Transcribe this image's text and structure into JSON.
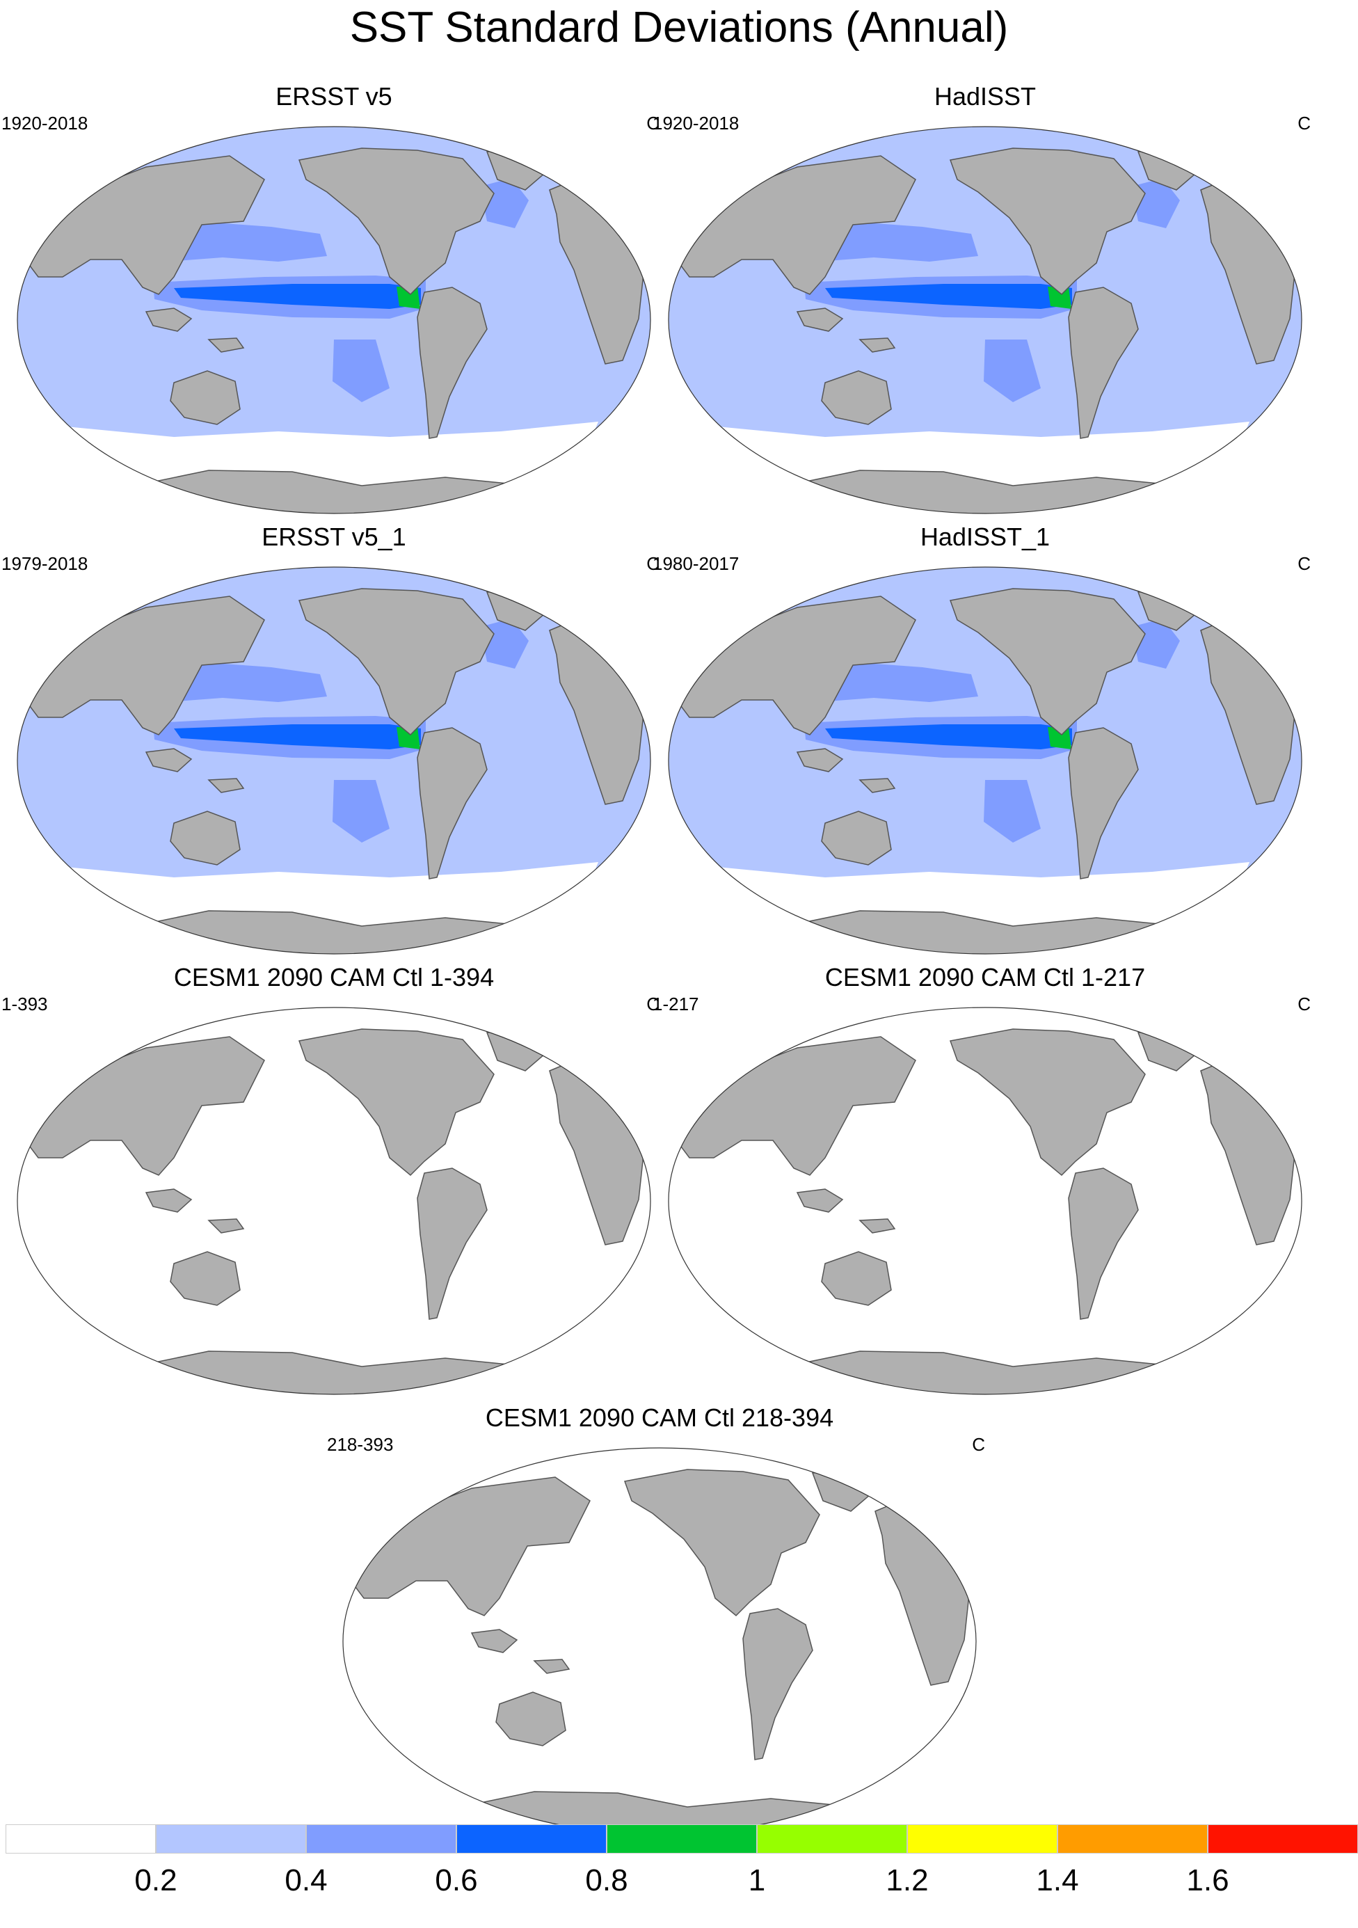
{
  "figure": {
    "title": "SST Standard Deviations (Annual)"
  },
  "colors": {
    "land": "#b0b0b0",
    "land_stroke": "#555555",
    "levels": [
      "#ffffff",
      "#b3c6ff",
      "#809dff",
      "#0c64ff",
      "#00c431",
      "#96ff00",
      "#ffff00",
      "#ff9c00",
      "#ff1300"
    ]
  },
  "panels": [
    {
      "title": "ERSST v5",
      "years": "1920-2018",
      "units": "C",
      "pattern": "observed"
    },
    {
      "title": "HadISST",
      "years": "1920-2018",
      "units": "C",
      "pattern": "observed"
    },
    {
      "title": "ERSST v5_1",
      "years": "1979-2018",
      "units": "C",
      "pattern": "observed"
    },
    {
      "title": "HadISST_1",
      "years": "1980-2017",
      "units": "C",
      "pattern": "observed"
    },
    {
      "title": "CESM1 2090 CAM Ctl 1-394",
      "years": "1-393",
      "units": "C",
      "pattern": "model"
    },
    {
      "title": "CESM1 2090 CAM Ctl 1-217",
      "years": "1-217",
      "units": "C",
      "pattern": "model"
    },
    {
      "title": "CESM1 2090 CAM Ctl 218-394",
      "years": "218-393",
      "units": "C",
      "pattern": "model"
    }
  ],
  "colorbar": {
    "labels": [
      "0.2",
      "0.4",
      "0.6",
      "0.8",
      "1",
      "1.2",
      "1.4",
      "1.6"
    ]
  }
}
